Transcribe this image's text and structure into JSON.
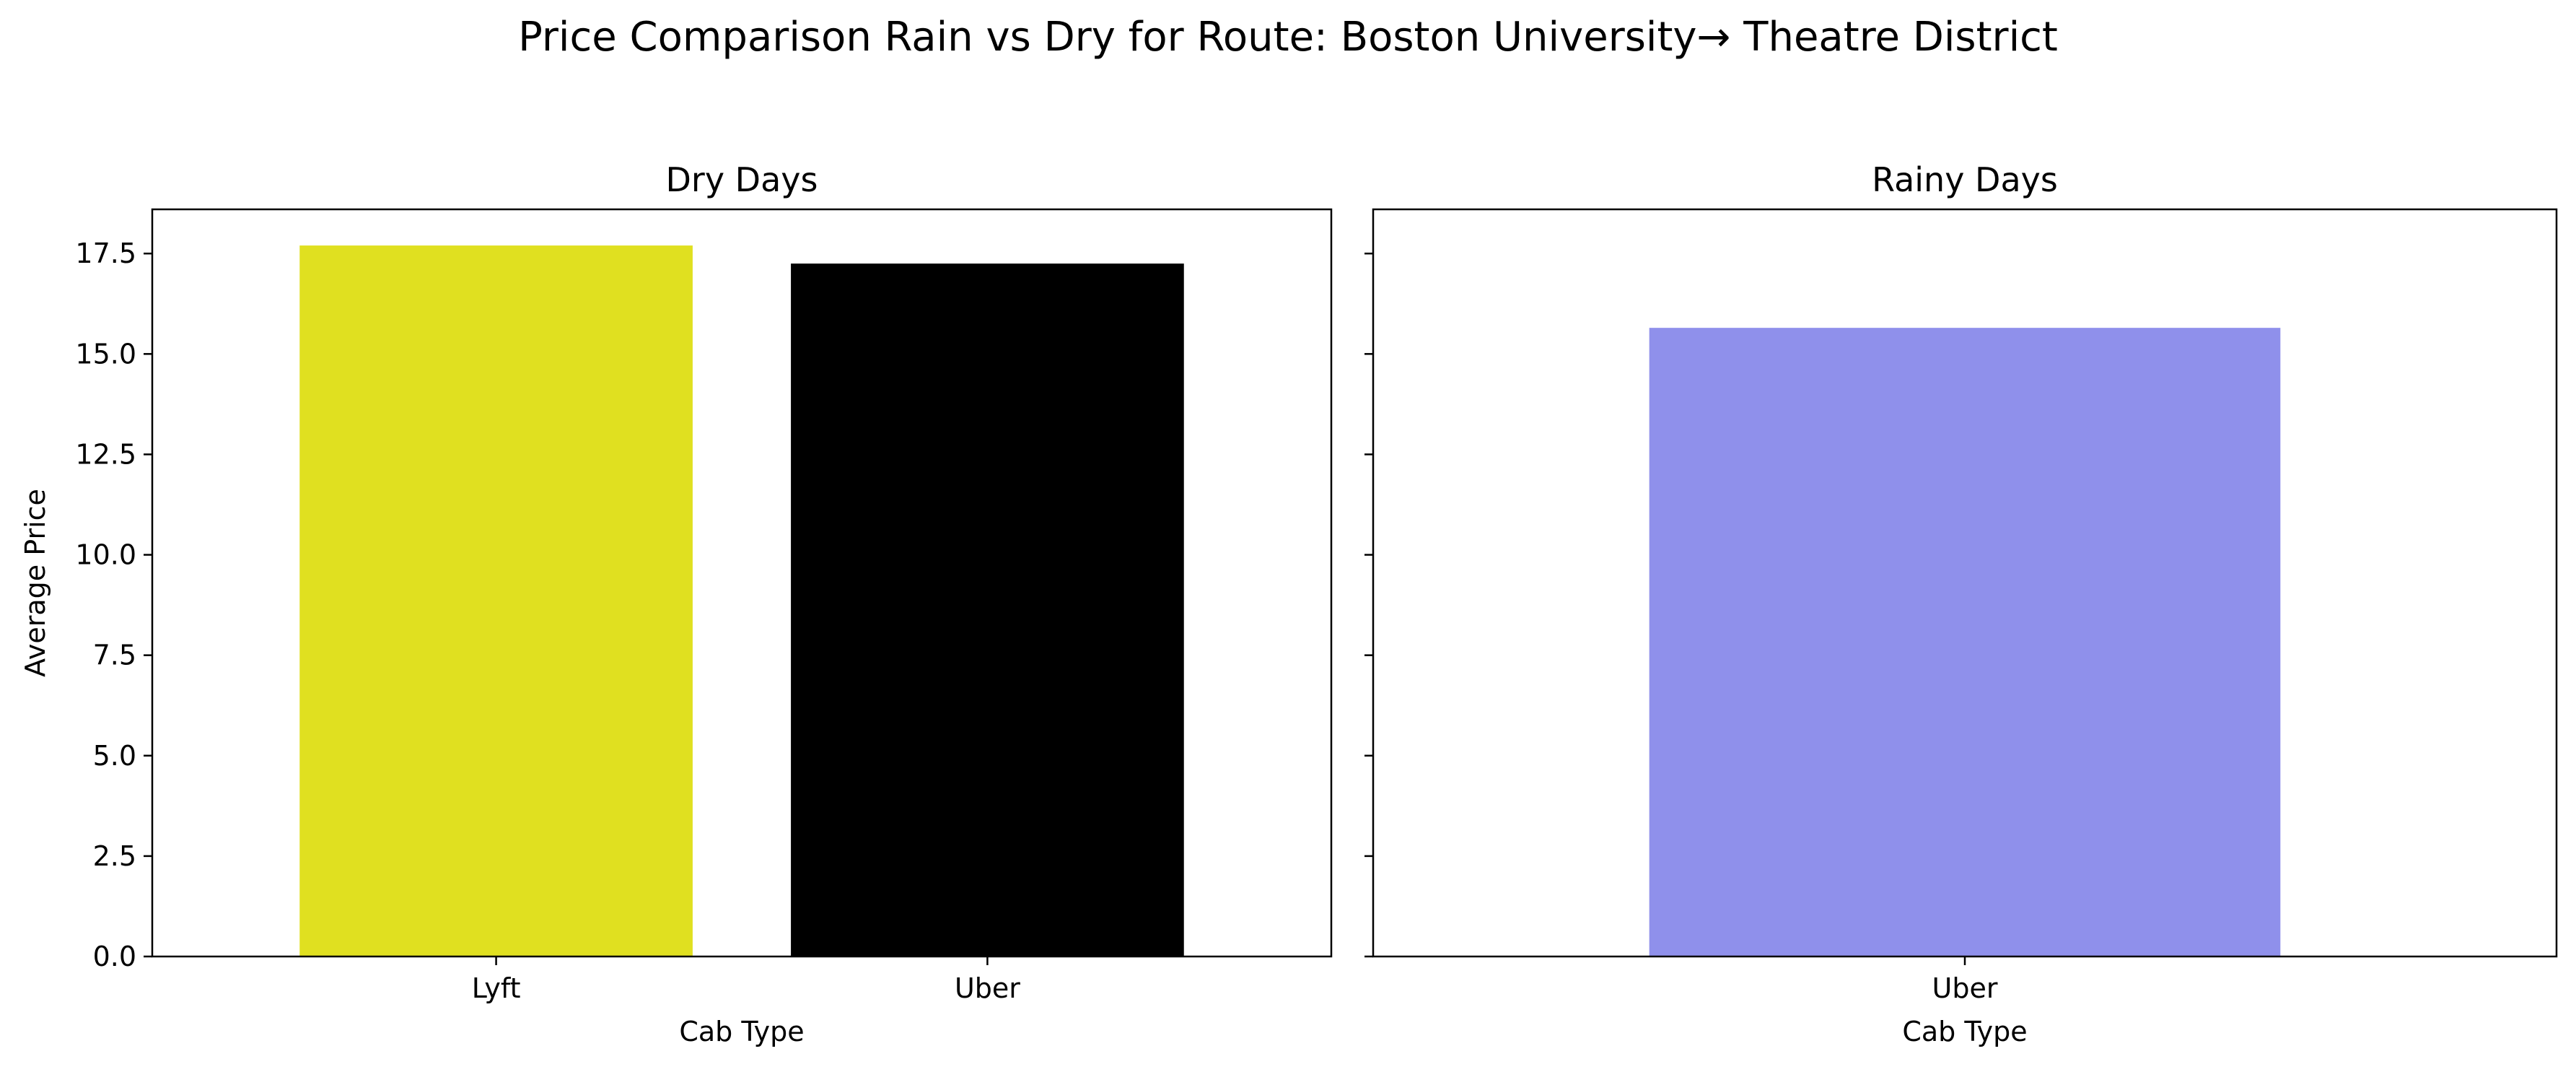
{
  "figure": {
    "title": "Price Comparison Rain vs Dry for Route: Boston University→ Theatre District"
  },
  "chart_data": [
    {
      "type": "bar",
      "title": "Dry Days",
      "xlabel": "Cab Type",
      "ylabel": "Average Price",
      "categories": [
        "Lyft",
        "Uber"
      ],
      "values": [
        17.7,
        17.25
      ],
      "colors": [
        "#e0e020",
        "#000000"
      ],
      "ylim": [
        0,
        18.6
      ],
      "yticks": [
        "0.0",
        "2.5",
        "5.0",
        "7.5",
        "10.0",
        "12.5",
        "15.0",
        "17.5"
      ],
      "grid": false
    },
    {
      "type": "bar",
      "title": "Rainy Days",
      "xlabel": "Cab Type",
      "ylabel": "",
      "categories": [
        "Uber"
      ],
      "values": [
        15.65
      ],
      "colors": [
        "#8f90eb"
      ],
      "ylim": [
        0,
        18.6
      ],
      "yticks": [
        "0.0",
        "2.5",
        "5.0",
        "7.5",
        "10.0",
        "12.5",
        "15.0",
        "17.5"
      ],
      "sharey": true,
      "grid": false
    }
  ]
}
